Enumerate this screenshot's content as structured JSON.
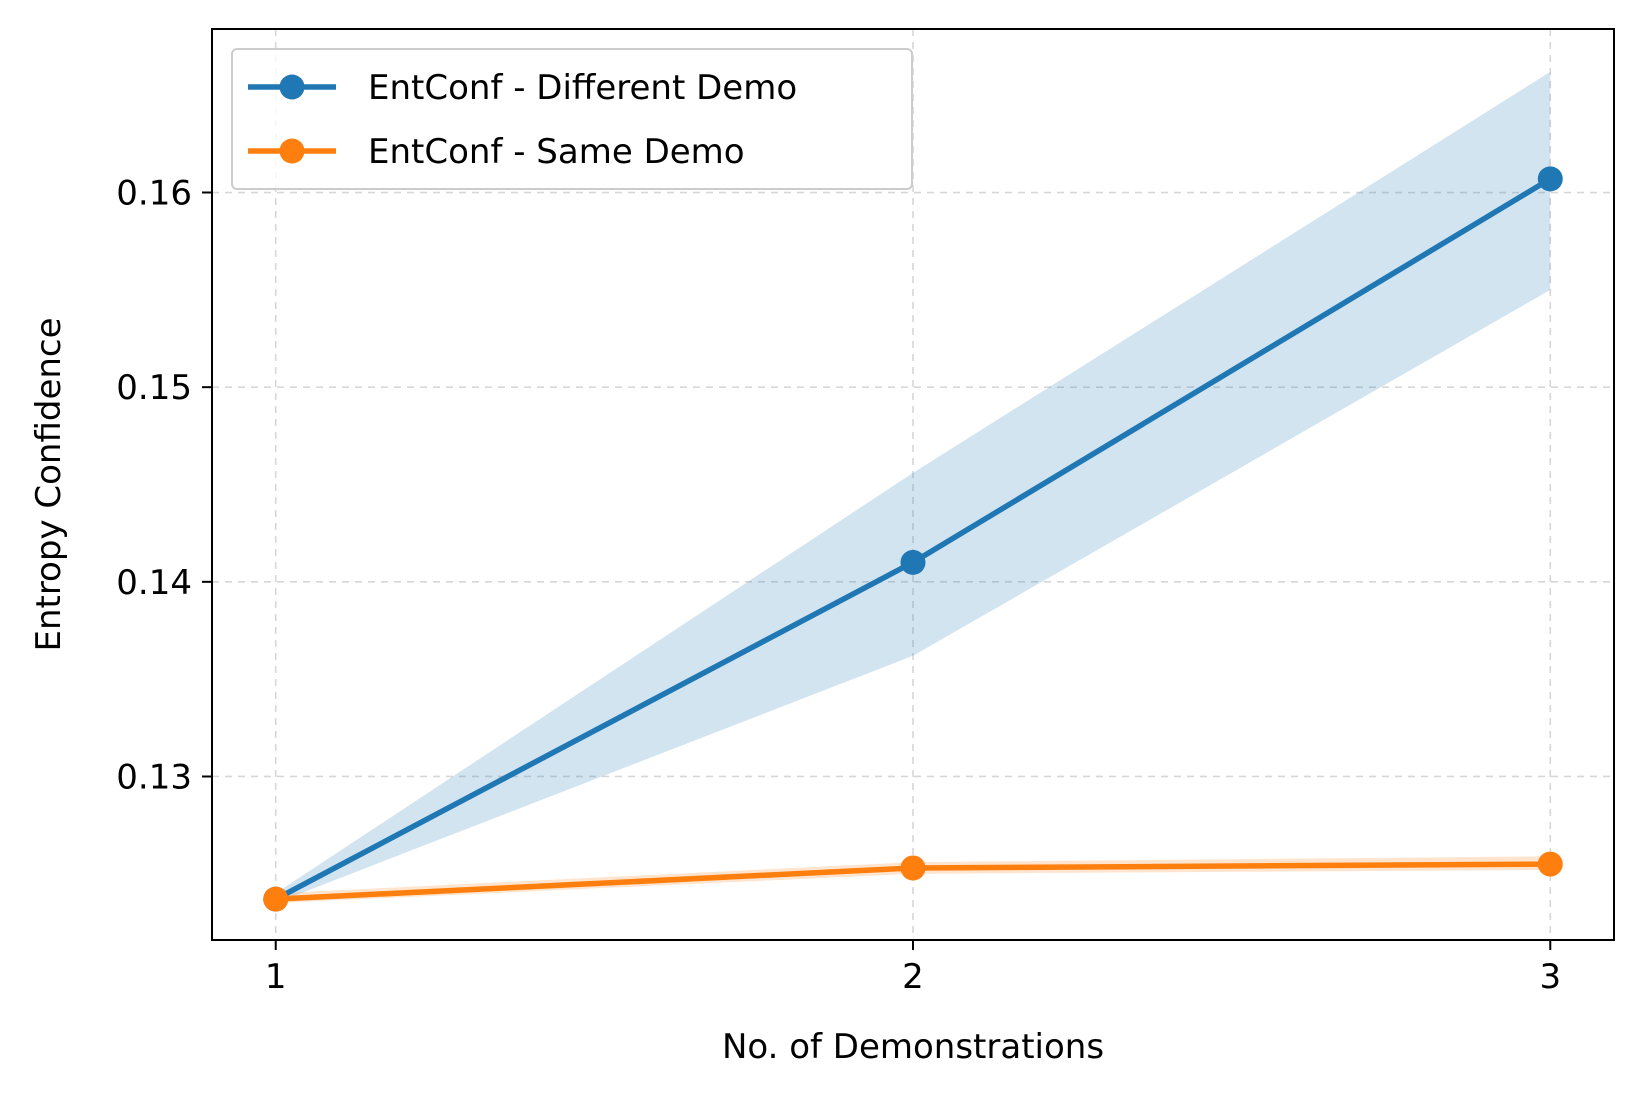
{
  "chart_data": {
    "type": "line",
    "title": "",
    "xlabel": "No. of Demonstrations",
    "ylabel": "Entropy Confidence",
    "x": [
      1,
      2,
      3
    ],
    "x_ticks": [
      "1",
      "2",
      "3"
    ],
    "y_ticks": [
      "0.13",
      "0.14",
      "0.15",
      "0.16"
    ],
    "y_tick_values": [
      0.13,
      0.14,
      0.15,
      0.16
    ],
    "xlim": [
      0.9,
      3.1
    ],
    "ylim": [
      0.1216,
      0.1684
    ],
    "grid": true,
    "legend_placement": "upper-left",
    "series": [
      {
        "name": "EntConf - Different Demo",
        "color": "#1f77b4",
        "values": [
          0.1237,
          0.141,
          0.1607
        ],
        "band_lower": [
          0.1235,
          0.1362,
          0.155
        ],
        "band_upper": [
          0.124,
          0.1456,
          0.1662
        ]
      },
      {
        "name": "EntConf - Same Demo",
        "color": "#ff7f0e",
        "values": [
          0.1237,
          0.1253,
          0.1255
        ],
        "band_lower": [
          0.1235,
          0.125,
          0.1252
        ],
        "band_upper": [
          0.124,
          0.1256,
          0.1259
        ]
      }
    ]
  }
}
